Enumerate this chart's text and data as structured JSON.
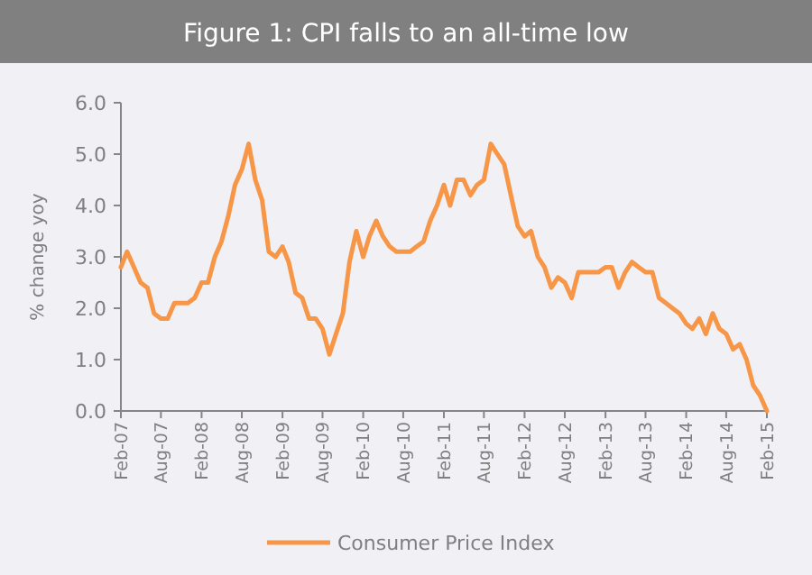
{
  "chart_data": {
    "type": "line",
    "title": "Figure 1: CPI falls to an all-time low",
    "ylabel": "% change yoy",
    "x": [
      "2007-02",
      "2007-03",
      "2007-04",
      "2007-05",
      "2007-06",
      "2007-07",
      "2007-08",
      "2007-09",
      "2007-10",
      "2007-11",
      "2007-12",
      "2008-01",
      "2008-02",
      "2008-03",
      "2008-04",
      "2008-05",
      "2008-06",
      "2008-07",
      "2008-08",
      "2008-09",
      "2008-10",
      "2008-11",
      "2008-12",
      "2009-01",
      "2009-02",
      "2009-03",
      "2009-04",
      "2009-05",
      "2009-06",
      "2009-07",
      "2009-08",
      "2009-09",
      "2009-10",
      "2009-11",
      "2009-12",
      "2010-01",
      "2010-02",
      "2010-03",
      "2010-04",
      "2010-05",
      "2010-06",
      "2010-07",
      "2010-08",
      "2010-09",
      "2010-10",
      "2010-11",
      "2010-12",
      "2011-01",
      "2011-02",
      "2011-03",
      "2011-04",
      "2011-05",
      "2011-06",
      "2011-07",
      "2011-08",
      "2011-09",
      "2011-10",
      "2011-11",
      "2011-12",
      "2012-01",
      "2012-02",
      "2012-03",
      "2012-04",
      "2012-05",
      "2012-06",
      "2012-07",
      "2012-08",
      "2012-09",
      "2012-10",
      "2012-11",
      "2012-12",
      "2013-01",
      "2013-02",
      "2013-03",
      "2013-04",
      "2013-05",
      "2013-06",
      "2013-07",
      "2013-08",
      "2013-09",
      "2013-10",
      "2013-11",
      "2013-12",
      "2014-01",
      "2014-02",
      "2014-03",
      "2014-04",
      "2014-05",
      "2014-06",
      "2014-07",
      "2014-08",
      "2014-09",
      "2014-10",
      "2014-11",
      "2014-12",
      "2015-01",
      "2015-02"
    ],
    "series": [
      {
        "name": "Consumer Price Index",
        "color": "#f79646",
        "values": [
          2.8,
          3.1,
          2.8,
          2.5,
          2.4,
          1.9,
          1.8,
          1.8,
          2.1,
          2.1,
          2.1,
          2.2,
          2.5,
          2.5,
          3.0,
          3.3,
          3.8,
          4.4,
          4.7,
          5.2,
          4.5,
          4.1,
          3.1,
          3.0,
          3.2,
          2.9,
          2.3,
          2.2,
          1.8,
          1.8,
          1.6,
          1.1,
          1.5,
          1.9,
          2.9,
          3.5,
          3.0,
          3.4,
          3.7,
          3.4,
          3.2,
          3.1,
          3.1,
          3.1,
          3.2,
          3.3,
          3.7,
          4.0,
          4.4,
          4.0,
          4.5,
          4.5,
          4.2,
          4.4,
          4.5,
          5.2,
          5.0,
          4.8,
          4.2,
          3.6,
          3.4,
          3.5,
          3.0,
          2.8,
          2.4,
          2.6,
          2.5,
          2.2,
          2.7,
          2.7,
          2.7,
          2.7,
          2.8,
          2.8,
          2.4,
          2.7,
          2.9,
          2.8,
          2.7,
          2.7,
          2.2,
          2.1,
          2.0,
          1.9,
          1.7,
          1.6,
          1.8,
          1.5,
          1.9,
          1.6,
          1.5,
          1.2,
          1.3,
          1.0,
          0.5,
          0.3,
          0.0
        ]
      }
    ],
    "xlim": [
      "2007-02",
      "2015-02"
    ],
    "xticks": [
      {
        "value": "2007-02",
        "label": "Feb-07"
      },
      {
        "value": "2007-08",
        "label": "Aug-07"
      },
      {
        "value": "2008-02",
        "label": "Feb-08"
      },
      {
        "value": "2008-08",
        "label": "Aug-08"
      },
      {
        "value": "2009-02",
        "label": "Feb-09"
      },
      {
        "value": "2009-08",
        "label": "Aug-09"
      },
      {
        "value": "2010-02",
        "label": "Feb-10"
      },
      {
        "value": "2010-08",
        "label": "Aug-10"
      },
      {
        "value": "2011-02",
        "label": "Feb-11"
      },
      {
        "value": "2011-08",
        "label": "Aug-11"
      },
      {
        "value": "2012-02",
        "label": "Feb-12"
      },
      {
        "value": "2012-08",
        "label": "Aug-12"
      },
      {
        "value": "2013-02",
        "label": "Feb-13"
      },
      {
        "value": "2013-08",
        "label": "Aug-13"
      },
      {
        "value": "2014-02",
        "label": "Feb-14"
      },
      {
        "value": "2014-08",
        "label": "Aug-14"
      },
      {
        "value": "2015-02",
        "label": "Feb-15"
      }
    ],
    "ylim": [
      0,
      6
    ],
    "yticks": [
      {
        "value": 0,
        "label": "0.0"
      },
      {
        "value": 1,
        "label": "1.0"
      },
      {
        "value": 2,
        "label": "2.0"
      },
      {
        "value": 3,
        "label": "3.0"
      },
      {
        "value": 4,
        "label": "4.0"
      },
      {
        "value": 5,
        "label": "5.0"
      },
      {
        "value": 6,
        "label": "6.0"
      }
    ],
    "grid": false,
    "legend": "bottom",
    "marker": "none",
    "line_style": "solid"
  }
}
